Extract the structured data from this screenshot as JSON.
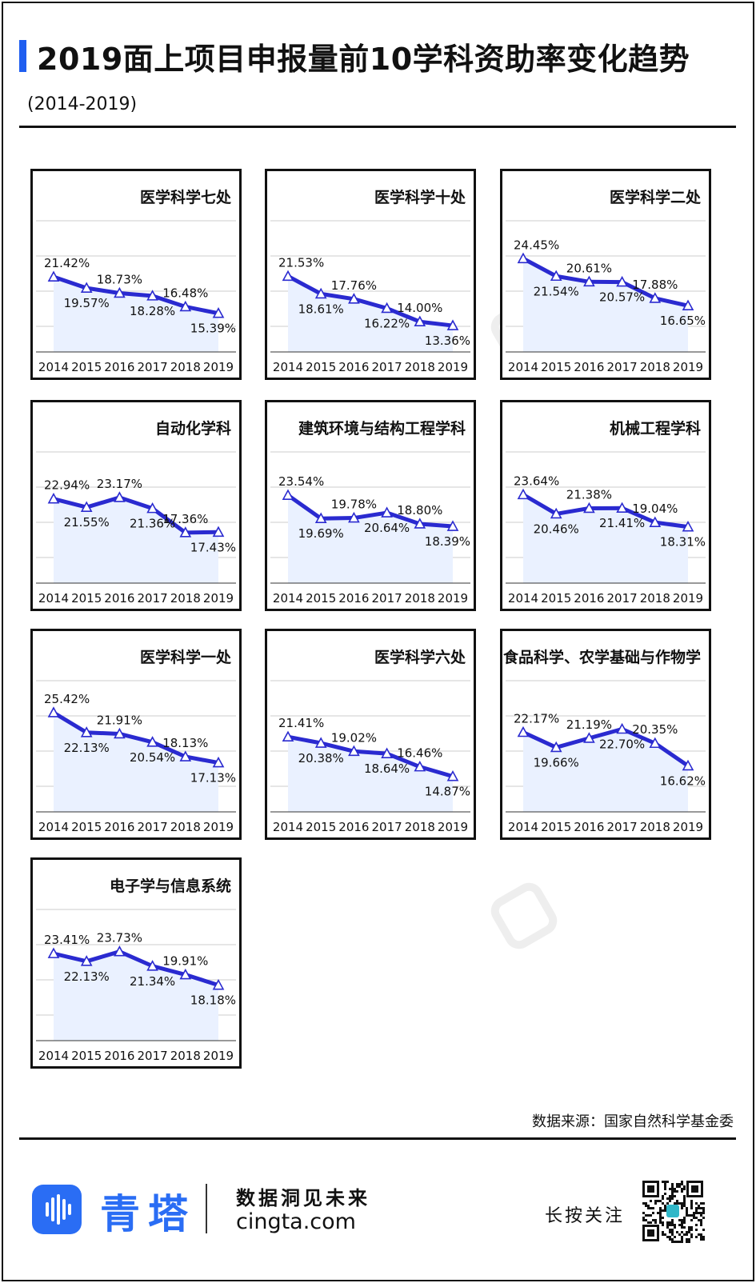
{
  "header": {
    "title": "2019面上项目申报量前10学科资助率变化趋势",
    "subtitle": "(2014-2019)"
  },
  "colors": {
    "accent": "#1f5ef0",
    "line": "#2a2ad0",
    "area": "#eaf1ff",
    "grid": "#cccccc"
  },
  "chart_data": [
    {
      "type": "line",
      "title": "医学科学七处",
      "x": [
        "2014",
        "2015",
        "2016",
        "2017",
        "2018",
        "2019"
      ],
      "values": [
        21.42,
        19.57,
        18.73,
        18.28,
        16.48,
        15.39
      ],
      "labels": [
        "21.42%",
        "19.57%",
        "18.73%",
        "18.28%",
        "16.48%",
        "15.39%"
      ],
      "ylim": [
        9,
        27
      ],
      "grid": true
    },
    {
      "type": "line",
      "title": "医学科学十处",
      "x": [
        "2014",
        "2015",
        "2016",
        "2017",
        "2018",
        "2019"
      ],
      "values": [
        21.53,
        18.61,
        17.76,
        16.22,
        14.0,
        13.36
      ],
      "labels": [
        "21.53%",
        "18.61%",
        "17.76%",
        "16.22%",
        "14.00%",
        "13.36%"
      ],
      "ylim": [
        9,
        27
      ],
      "grid": true
    },
    {
      "type": "line",
      "title": "医学科学二处",
      "x": [
        "2014",
        "2015",
        "2016",
        "2017",
        "2018",
        "2019"
      ],
      "values": [
        24.45,
        21.54,
        20.61,
        20.57,
        17.88,
        16.65
      ],
      "labels": [
        "24.45%",
        "21.54%",
        "20.61%",
        "20.57%",
        "17.88%",
        "16.65%"
      ],
      "ylim": [
        9,
        27
      ],
      "grid": true
    },
    {
      "type": "line",
      "title": "自动化学科",
      "x": [
        "2014",
        "2015",
        "2016",
        "2017",
        "2018",
        "2019"
      ],
      "values": [
        22.94,
        21.55,
        23.17,
        21.36,
        17.36,
        17.43
      ],
      "labels": [
        "22.94%",
        "21.55%",
        "23.17%",
        "21.36%",
        "17.36%",
        "17.43%"
      ],
      "ylim": [
        9,
        27
      ],
      "grid": true
    },
    {
      "type": "line",
      "title": "建筑环境与结构工程学科",
      "x": [
        "2014",
        "2015",
        "2016",
        "2017",
        "2018",
        "2019"
      ],
      "values": [
        23.54,
        19.69,
        19.78,
        20.64,
        18.8,
        18.39
      ],
      "labels": [
        "23.54%",
        "19.69%",
        "19.78%",
        "20.64%",
        "18.80%",
        "18.39%"
      ],
      "ylim": [
        9,
        27
      ],
      "grid": true
    },
    {
      "type": "line",
      "title": "机械工程学科",
      "x": [
        "2014",
        "2015",
        "2016",
        "2017",
        "2018",
        "2019"
      ],
      "values": [
        23.64,
        20.46,
        21.38,
        21.41,
        19.04,
        18.31
      ],
      "labels": [
        "23.64%",
        "20.46%",
        "21.38%",
        "21.41%",
        "19.04%",
        "18.31%"
      ],
      "ylim": [
        9,
        27
      ],
      "grid": true
    },
    {
      "type": "line",
      "title": "医学科学一处",
      "x": [
        "2014",
        "2015",
        "2016",
        "2017",
        "2018",
        "2019"
      ],
      "values": [
        25.42,
        22.13,
        21.91,
        20.54,
        18.13,
        17.13
      ],
      "labels": [
        "25.42%",
        "22.13%",
        "21.91%",
        "20.54%",
        "18.13%",
        "17.13%"
      ],
      "ylim": [
        9,
        27
      ],
      "grid": true
    },
    {
      "type": "line",
      "title": "医学科学六处",
      "x": [
        "2014",
        "2015",
        "2016",
        "2017",
        "2018",
        "2019"
      ],
      "values": [
        21.41,
        20.38,
        19.02,
        18.64,
        16.46,
        14.87
      ],
      "labels": [
        "21.41%",
        "20.38%",
        "19.02%",
        "18.64%",
        "16.46%",
        "14.87%"
      ],
      "ylim": [
        9,
        27
      ],
      "grid": true
    },
    {
      "type": "line",
      "title": "食品科学、农学基础与作物学",
      "x": [
        "2014",
        "2015",
        "2016",
        "2017",
        "2018",
        "2019"
      ],
      "values": [
        22.17,
        19.66,
        21.19,
        22.7,
        20.35,
        16.62
      ],
      "labels": [
        "22.17%",
        "19.66%",
        "21.19%",
        "22.70%",
        "20.35%",
        "16.62%"
      ],
      "ylim": [
        9,
        27
      ],
      "grid": true
    },
    {
      "type": "line",
      "title": "电子学与信息系统",
      "x": [
        "2014",
        "2015",
        "2016",
        "2017",
        "2018",
        "2019"
      ],
      "values": [
        23.41,
        22.13,
        23.73,
        21.34,
        19.91,
        18.18
      ],
      "labels": [
        "23.41%",
        "22.13%",
        "23.73%",
        "21.34%",
        "19.91%",
        "18.18%"
      ],
      "ylim": [
        9,
        27
      ],
      "grid": true
    }
  ],
  "source": "数据来源：国家自然科学基金委",
  "footer": {
    "brand": "青塔",
    "slogan": "数据洞见未来",
    "domain": "cingta.com",
    "follow": "长按关注"
  },
  "watermark": {
    "icon": "cingta-logo-icon"
  }
}
